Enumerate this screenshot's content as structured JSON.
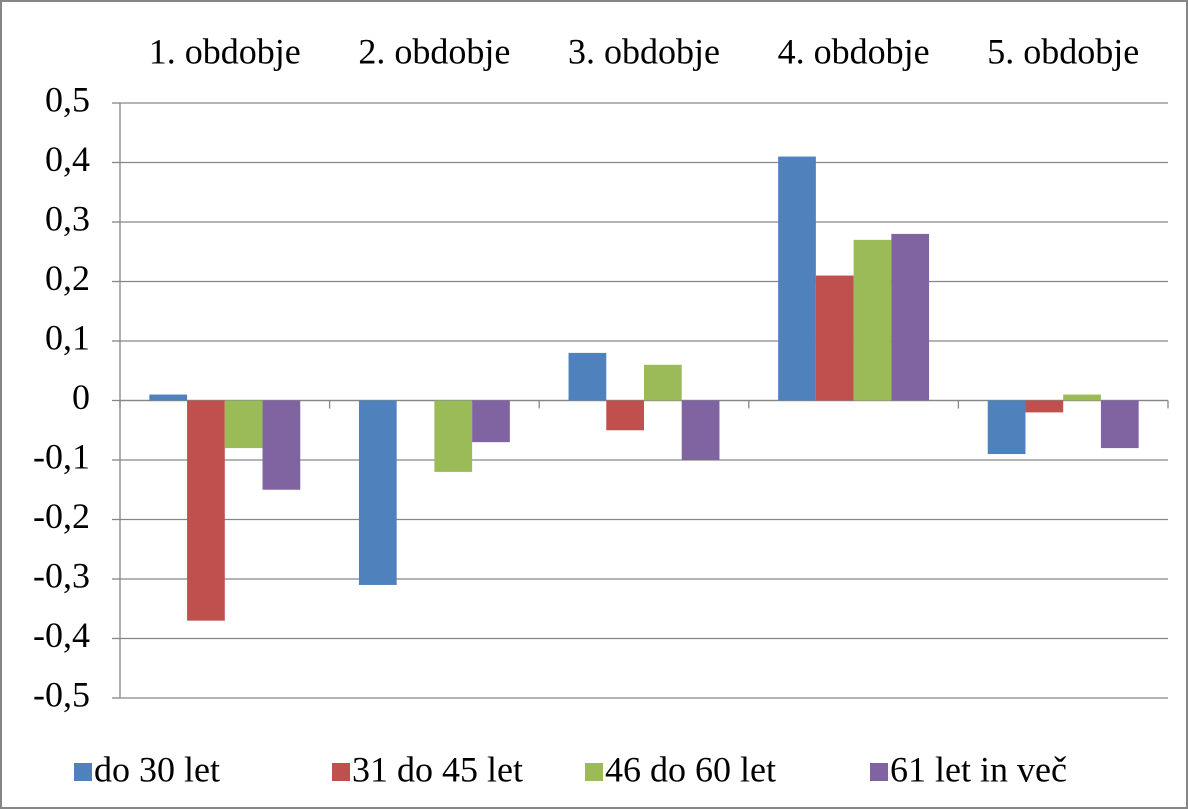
{
  "chart_data": {
    "type": "bar",
    "categories": [
      "1. obdobje",
      "2. obdobje",
      "3. obdobje",
      "4. obdobje",
      "5. obdobje"
    ],
    "series": [
      {
        "name": "do 30 let",
        "color": "#4f81bd",
        "values": [
          0.01,
          -0.31,
          0.08,
          0.41,
          -0.09
        ]
      },
      {
        "name": "31 do 45 let",
        "color": "#c0504d",
        "values": [
          -0.37,
          0,
          -0.05,
          0.21,
          -0.02
        ]
      },
      {
        "name": "46 do 60 let",
        "color": "#9bbb59",
        "values": [
          -0.08,
          -0.12,
          0.06,
          0.27,
          0.01
        ]
      },
      {
        "name": "61 let in več",
        "color": "#8064a2",
        "values": [
          -0.15,
          -0.07,
          -0.1,
          0.28,
          -0.08
        ]
      }
    ],
    "ylim": [
      -0.5,
      0.5
    ],
    "yticks": [
      {
        "value": -0.5,
        "label": "-0,5"
      },
      {
        "value": -0.4,
        "label": "-0,4"
      },
      {
        "value": -0.3,
        "label": "-0,3"
      },
      {
        "value": -0.2,
        "label": "-0,2"
      },
      {
        "value": -0.1,
        "label": "-0,1"
      },
      0,
      {
        "value": 0.1,
        "label": "0,1"
      },
      {
        "value": 0.2,
        "label": "0,2"
      },
      {
        "value": 0.3,
        "label": "0,3"
      },
      {
        "value": 0.4,
        "label": "0,4"
      },
      {
        "value": 0.5,
        "label": "0,5"
      }
    ],
    "grid": true,
    "legend": "bottom"
  }
}
